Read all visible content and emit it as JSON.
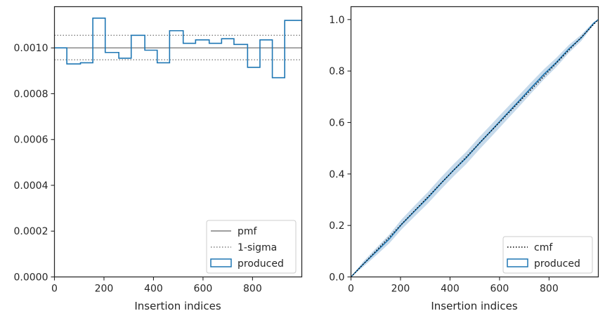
{
  "chart_data": [
    {
      "type": "histogram-step",
      "xlabel": "Insertion indices",
      "ylabel": "",
      "xlim": [
        0,
        999
      ],
      "ylim": [
        0,
        0.00118
      ],
      "xticks": [
        0,
        200,
        400,
        600,
        800
      ],
      "xtick_labels": [
        "0",
        "200",
        "400",
        "600",
        "800"
      ],
      "yticks": [
        0,
        0.0002,
        0.0004,
        0.0006,
        0.0008,
        0.001
      ],
      "ytick_labels": [
        "0.0000",
        "0.0002",
        "0.0004",
        "0.0006",
        "0.0008",
        "0.0010"
      ],
      "reference_lines": [
        {
          "name": "pmf",
          "y": 0.001,
          "style": "solid",
          "color": "#7f7f7f"
        },
        {
          "name": "1-sigma",
          "y": 0.001055,
          "style": "dotted",
          "color": "#7f7f7f"
        },
        {
          "name": "1-sigma",
          "y": 0.000948,
          "style": "dotted",
          "color": "#7f7f7f"
        }
      ],
      "bin_edges": [
        0,
        50,
        105,
        155,
        205,
        260,
        310,
        365,
        415,
        465,
        520,
        570,
        625,
        675,
        725,
        780,
        830,
        880,
        930,
        980,
        999
      ],
      "series": [
        {
          "name": "produced",
          "color": "#1f77b4",
          "values": [
            0.001,
            0.00093,
            0.000935,
            0.00113,
            0.00098,
            0.000955,
            0.001055,
            0.00099,
            0.000935,
            0.001075,
            0.00102,
            0.001035,
            0.00102,
            0.00104,
            0.001015,
            0.000915,
            0.001035,
            0.00087,
            0.00112,
            0.00112
          ]
        }
      ],
      "legend": {
        "position": "lower right",
        "entries": [
          {
            "label": "pmf",
            "kind": "solid-line",
            "color": "#7f7f7f"
          },
          {
            "label": "1-sigma",
            "kind": "dotted-line",
            "color": "#7f7f7f"
          },
          {
            "label": "produced",
            "kind": "patch",
            "color": "#1f77b4"
          }
        ]
      },
      "grid": false
    },
    {
      "type": "line",
      "xlabel": "Insertion indices",
      "ylabel": "",
      "xlim": [
        0,
        999
      ],
      "ylim": [
        0,
        1.05
      ],
      "xticks": [
        0,
        200,
        400,
        600,
        800
      ],
      "xtick_labels": [
        "0",
        "200",
        "400",
        "600",
        "800"
      ],
      "yticks": [
        0,
        0.2,
        0.4,
        0.6,
        0.8,
        1.0
      ],
      "ytick_labels": [
        "0.0",
        "0.2",
        "0.4",
        "0.6",
        "0.8",
        "1.0"
      ],
      "series": [
        {
          "name": "cmf",
          "style": "dotted",
          "color": "#000000",
          "x": [
            0,
            999
          ],
          "y": [
            0,
            1.0
          ]
        },
        {
          "name": "produced",
          "style": "step",
          "color": "#1f77b4",
          "x": [
            0,
            50,
            105,
            155,
            205,
            260,
            310,
            365,
            415,
            465,
            520,
            570,
            625,
            675,
            725,
            780,
            830,
            880,
            930,
            980,
            999
          ],
          "y": [
            0,
            0.05,
            0.101,
            0.148,
            0.205,
            0.259,
            0.307,
            0.365,
            0.415,
            0.462,
            0.521,
            0.572,
            0.629,
            0.68,
            0.732,
            0.788,
            0.834,
            0.886,
            0.929,
            0.985,
            1.0
          ]
        }
      ],
      "confidence_band": {
        "color": "#aecbe3"
      },
      "legend": {
        "position": "lower right",
        "entries": [
          {
            "label": "cmf",
            "kind": "dotted-line",
            "color": "#000000"
          },
          {
            "label": "produced",
            "kind": "patch",
            "color": "#1f77b4"
          }
        ]
      },
      "grid": false
    }
  ]
}
